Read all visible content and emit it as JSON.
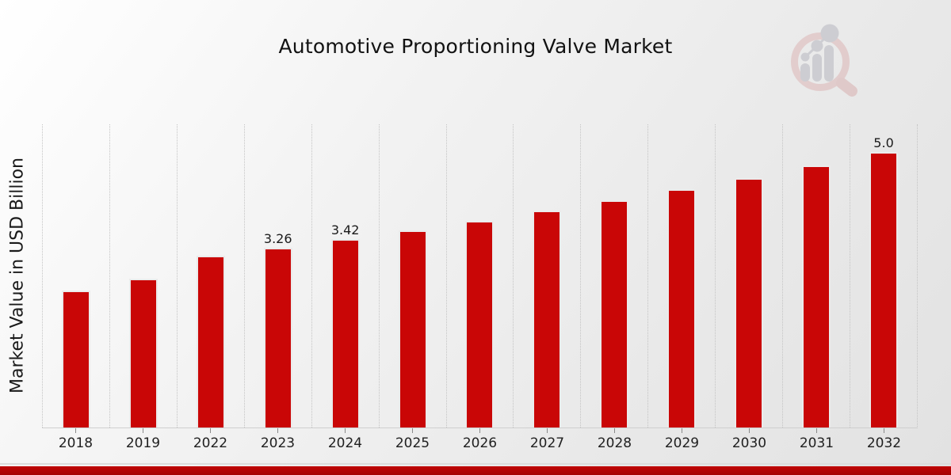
{
  "header": {
    "title": "Automotive Proportioning Valve Market"
  },
  "logo": {
    "icon": "magnifier-bar-chart-watermark",
    "ring_color": "#dcb6b6",
    "bars_color": "#b7b7bf",
    "handle_color": "#d8afaf"
  },
  "footer": {
    "red_bar_color": "#b30404"
  },
  "chart_data": {
    "type": "bar",
    "title": "Automotive Proportioning Valve Market",
    "xlabel": "",
    "ylabel": "Market Value in USD Billion",
    "categories": [
      "2018",
      "2019",
      "2022",
      "2023",
      "2024",
      "2025",
      "2026",
      "2027",
      "2028",
      "2029",
      "2030",
      "2031",
      "2032"
    ],
    "values": [
      2.48,
      2.7,
      3.11,
      3.26,
      3.42,
      3.58,
      3.75,
      3.93,
      4.12,
      4.32,
      4.53,
      4.75,
      5.0
    ],
    "data_labels": [
      "",
      "",
      "",
      "3.26",
      "3.42",
      "",
      "",
      "",
      "",
      "",
      "",
      "",
      "5.0"
    ],
    "bar_color": "#c90606",
    "ylim": [
      0,
      5.5
    ],
    "grid": "vertical-dotted",
    "legend": "none"
  }
}
